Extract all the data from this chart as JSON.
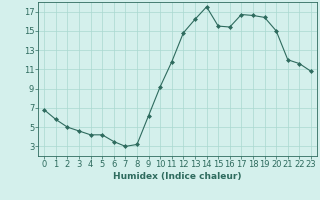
{
  "x": [
    0,
    1,
    2,
    3,
    4,
    5,
    6,
    7,
    8,
    9,
    10,
    11,
    12,
    13,
    14,
    15,
    16,
    17,
    18,
    19,
    20,
    21,
    22,
    23
  ],
  "y": [
    6.8,
    5.8,
    5.0,
    4.6,
    4.2,
    4.2,
    3.5,
    3.0,
    3.2,
    6.2,
    9.2,
    11.8,
    14.8,
    16.2,
    17.5,
    15.5,
    15.4,
    16.7,
    16.6,
    16.4,
    15.0,
    12.0,
    11.6,
    10.8
  ],
  "line_color": "#2e6b5e",
  "marker": "D",
  "marker_size": 2.0,
  "bg_color": "#d4f0ec",
  "grid_color": "#aad8d0",
  "xlabel": "Humidex (Indice chaleur)",
  "ylabel": "",
  "xlim": [
    -0.5,
    23.5
  ],
  "ylim": [
    2,
    18
  ],
  "yticks": [
    3,
    5,
    7,
    9,
    11,
    13,
    15,
    17
  ],
  "xticks": [
    0,
    1,
    2,
    3,
    4,
    5,
    6,
    7,
    8,
    9,
    10,
    11,
    12,
    13,
    14,
    15,
    16,
    17,
    18,
    19,
    20,
    21,
    22,
    23
  ],
  "xtick_labels": [
    "0",
    "1",
    "2",
    "3",
    "4",
    "5",
    "6",
    "7",
    "8",
    "9",
    "10",
    "11",
    "12",
    "13",
    "14",
    "15",
    "16",
    "17",
    "18",
    "19",
    "20",
    "21",
    "22",
    "23"
  ],
  "tick_color": "#2e6b5e",
  "axis_color": "#2e6b5e",
  "xlabel_fontsize": 6.5,
  "tick_fontsize": 6.0,
  "linewidth": 0.8
}
